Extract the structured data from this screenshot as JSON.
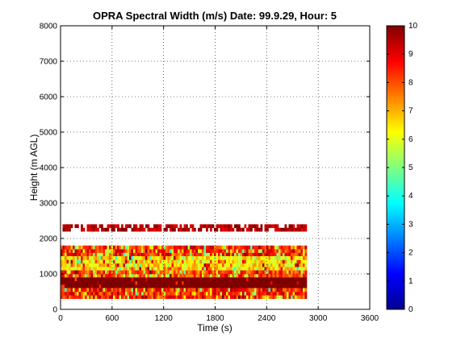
{
  "chart_data": {
    "type": "heatmap",
    "title": "OPRA Spectral Width (m/s)  Date: 99.9.29, Hour: 5",
    "xlabel": "Time (s)",
    "ylabel": "Height (m AGL)",
    "xlim": [
      0,
      3600
    ],
    "ylim": [
      0,
      8000
    ],
    "xticks": [
      0,
      600,
      1200,
      1800,
      2400,
      3000,
      3600
    ],
    "yticks": [
      0,
      1000,
      2000,
      3000,
      4000,
      5000,
      6000,
      7000,
      8000
    ],
    "grid": true,
    "colorbar": {
      "min": 0,
      "max": 10,
      "ticks": [
        0,
        1,
        2,
        3,
        4,
        5,
        6,
        7,
        8,
        9,
        10
      ],
      "colormap": "jet",
      "placement": "right"
    },
    "rows": [
      {
        "height_range": [
          2200,
          2400
        ],
        "time_range": [
          0,
          2850
        ],
        "dominant_value": 9.5,
        "pattern": "intermittent"
      },
      {
        "height_range": [
          1500,
          1800
        ],
        "time_range": [
          0,
          2850
        ],
        "dominant_value": 8.5,
        "pattern": "mixed"
      },
      {
        "height_range": [
          1100,
          1500
        ],
        "time_range": [
          0,
          2850
        ],
        "dominant_value": 6.5,
        "pattern": "mixed"
      },
      {
        "height_range": [
          900,
          1100
        ],
        "time_range": [
          0,
          2850
        ],
        "dominant_value": 8.0,
        "pattern": "mixed"
      },
      {
        "height_range": [
          600,
          900
        ],
        "time_range": [
          0,
          2850
        ],
        "dominant_value": 10.0,
        "pattern": "solid"
      },
      {
        "height_range": [
          300,
          600
        ],
        "time_range": [
          0,
          2850
        ],
        "dominant_value": 8.5,
        "pattern": "mixed"
      }
    ]
  }
}
